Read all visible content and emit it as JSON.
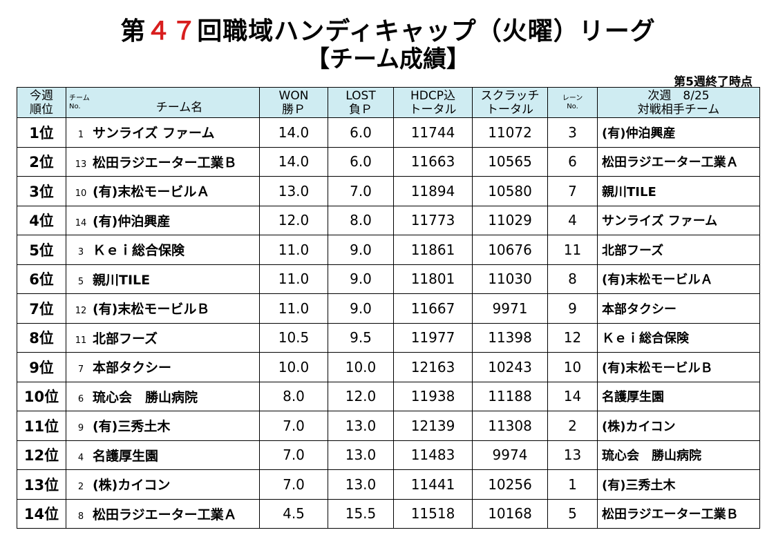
{
  "header": {
    "title_prefix": "第",
    "title_number": "４７",
    "title_suffix": "回職域ハンディキャップ（火曜）リーグ",
    "subtitle": "【チーム成績】",
    "status": "第5週終了時点"
  },
  "table": {
    "columns": {
      "rank_line1": "今週",
      "rank_line2": "順位",
      "team_small1": "チーム",
      "team_small2": "No.",
      "team_name": "チーム名",
      "won_line1": "WON",
      "won_line2": "勝Ｐ",
      "lost_line1": "LOST",
      "lost_line2": "負Ｐ",
      "hdcp_line1": "HDCP込",
      "hdcp_line2": "トータル",
      "scratch_line1": "スクラッチ",
      "scratch_line2": "トータル",
      "lane_line1": "レーン",
      "lane_line2": "No.",
      "opp_line1": "次週　8/25",
      "opp_line2": "対戦相手チーム"
    },
    "rows": [
      {
        "rank": "1位",
        "no": "1",
        "team": "サンライズ ファーム",
        "won": "14.0",
        "lost": "6.0",
        "hdcp": "11744",
        "scratch": "11072",
        "lane": "3",
        "opponent": "(有)仲泊興産"
      },
      {
        "rank": "2位",
        "no": "13",
        "team": "松田ラジエーター工業Ｂ",
        "won": "14.0",
        "lost": "6.0",
        "hdcp": "11663",
        "scratch": "10565",
        "lane": "6",
        "opponent": "松田ラジエーター工業Ａ"
      },
      {
        "rank": "3位",
        "no": "10",
        "team": "(有)末松モービルＡ",
        "won": "13.0",
        "lost": "7.0",
        "hdcp": "11894",
        "scratch": "10580",
        "lane": "7",
        "opponent": "親川TILE"
      },
      {
        "rank": "4位",
        "no": "14",
        "team": "(有)仲泊興産",
        "won": "12.0",
        "lost": "8.0",
        "hdcp": "11773",
        "scratch": "11029",
        "lane": "4",
        "opponent": "サンライズ ファーム"
      },
      {
        "rank": "5位",
        "no": "3",
        "team": "Ｋｅｉ総合保険",
        "won": "11.0",
        "lost": "9.0",
        "hdcp": "11861",
        "scratch": "10676",
        "lane": "11",
        "opponent": "北部フーズ"
      },
      {
        "rank": "6位",
        "no": "5",
        "team": "親川TILE",
        "won": "11.0",
        "lost": "9.0",
        "hdcp": "11801",
        "scratch": "11030",
        "lane": "8",
        "opponent": "(有)末松モービルＡ"
      },
      {
        "rank": "7位",
        "no": "12",
        "team": "(有)末松モービルＢ",
        "won": "11.0",
        "lost": "9.0",
        "hdcp": "11667",
        "scratch": "9971",
        "lane": "9",
        "opponent": "本部タクシー"
      },
      {
        "rank": "8位",
        "no": "11",
        "team": "北部フーズ",
        "won": "10.5",
        "lost": "9.5",
        "hdcp": "11977",
        "scratch": "11398",
        "lane": "12",
        "opponent": "Ｋｅｉ総合保険"
      },
      {
        "rank": "9位",
        "no": "7",
        "team": "本部タクシー",
        "won": "10.0",
        "lost": "10.0",
        "hdcp": "12163",
        "scratch": "10243",
        "lane": "10",
        "opponent": "(有)末松モービルＢ"
      },
      {
        "rank": "10位",
        "no": "6",
        "team": "琉心会　勝山病院",
        "won": "8.0",
        "lost": "12.0",
        "hdcp": "11938",
        "scratch": "11188",
        "lane": "14",
        "opponent": "名護厚生園"
      },
      {
        "rank": "11位",
        "no": "9",
        "team": "(有)三秀土木",
        "won": "7.0",
        "lost": "13.0",
        "hdcp": "12139",
        "scratch": "11308",
        "lane": "2",
        "opponent": "(株)カイコン"
      },
      {
        "rank": "12位",
        "no": "4",
        "team": "名護厚生園",
        "won": "7.0",
        "lost": "13.0",
        "hdcp": "11483",
        "scratch": "9974",
        "lane": "13",
        "opponent": "琉心会　勝山病院"
      },
      {
        "rank": "13位",
        "no": "2",
        "team": "(株)カイコン",
        "won": "7.0",
        "lost": "13.0",
        "hdcp": "11441",
        "scratch": "10256",
        "lane": "1",
        "opponent": "(有)三秀土木"
      },
      {
        "rank": "14位",
        "no": "8",
        "team": "松田ラジエーター工業Ａ",
        "won": "4.5",
        "lost": "15.5",
        "hdcp": "11518",
        "scratch": "10168",
        "lane": "5",
        "opponent": "松田ラジエーター工業Ｂ"
      }
    ]
  },
  "colors": {
    "header_bg": "#cfecf2",
    "title_number": "#d81e1e"
  }
}
